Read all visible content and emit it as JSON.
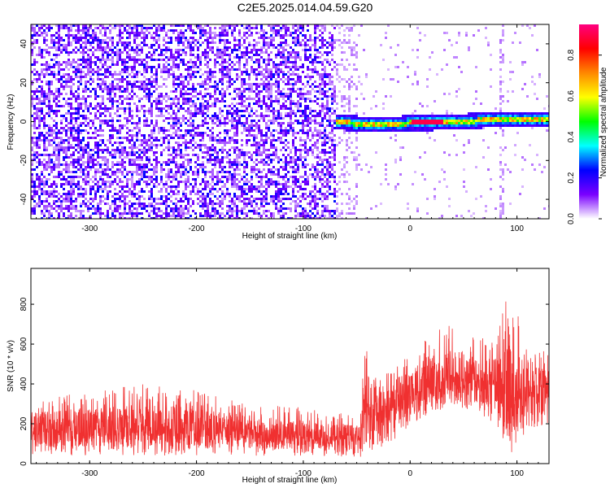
{
  "title": "C2E5.2025.014.04.59.G20",
  "chart_data": [
    {
      "type": "heatmap",
      "xlabel": "Height of straight line (km)",
      "ylabel": "Frequency (Hz)",
      "xlim": [
        -355,
        130
      ],
      "ylim": [
        -50,
        50
      ],
      "x_ticks": [
        "-300",
        "-200",
        "-100",
        "0",
        "100"
      ],
      "x_tick_values": [
        -300,
        -200,
        -100,
        0,
        100
      ],
      "y_ticks": [
        "-40",
        "-20",
        "0",
        "20",
        "40"
      ],
      "y_tick_values": [
        -40,
        -20,
        0,
        20,
        40
      ],
      "colorbar": {
        "label": "Normalized spectral amplitude",
        "range": [
          0,
          0.95
        ],
        "ticks": [
          "0.0",
          "0.2",
          "0.4",
          "0.6",
          "0.8"
        ],
        "tick_values": [
          0.0,
          0.2,
          0.4,
          0.6,
          0.8
        ],
        "colormap": [
          "#ffffff",
          "#7a00ff",
          "#0000ff",
          "#00ffff",
          "#00ff00",
          "#ffff00",
          "#ff8800",
          "#ff0000",
          "#ff0080"
        ]
      },
      "features": {
        "noise_region_x": [
          -355,
          -70
        ],
        "noise_level": [
          0.0,
          0.25
        ],
        "signal_start_x": -70,
        "signal_track": [
          {
            "x": -70,
            "f": 0.5
          },
          {
            "x": -40,
            "f": -1
          },
          {
            "x": -20,
            "f": -1
          },
          {
            "x": 0,
            "f": 0
          },
          {
            "x": 20,
            "f": 0
          },
          {
            "x": 40,
            "f": 0.5
          },
          {
            "x": 60,
            "f": 1
          },
          {
            "x": 85,
            "f": 2
          },
          {
            "x": 130,
            "f": 2
          }
        ],
        "signal_peak_x": [
          0,
          30
        ],
        "signal_peak_amplitude": 0.9
      }
    },
    {
      "type": "line",
      "xlabel": "Height of straight line (km)",
      "ylabel": "SNR (10 * v/v)",
      "xlim": [
        -355,
        130
      ],
      "ylim": [
        0,
        980
      ],
      "x_ticks": [
        "-300",
        "-200",
        "-100",
        "0",
        "100"
      ],
      "x_tick_values": [
        -300,
        -200,
        -100,
        0,
        100
      ],
      "y_ticks": [
        "0",
        "200",
        "400",
        "600",
        "800"
      ],
      "y_tick_values": [
        0,
        200,
        400,
        600,
        800
      ],
      "color": "#f03030",
      "envelope": [
        {
          "x": -355,
          "low": 40,
          "mean": 170,
          "high": 320
        },
        {
          "x": -300,
          "low": 40,
          "mean": 180,
          "high": 360
        },
        {
          "x": -250,
          "low": 40,
          "mean": 190,
          "high": 400
        },
        {
          "x": -200,
          "low": 40,
          "mean": 180,
          "high": 380
        },
        {
          "x": -150,
          "low": 40,
          "mean": 160,
          "high": 320
        },
        {
          "x": -100,
          "low": 40,
          "mean": 140,
          "high": 280
        },
        {
          "x": -47,
          "low": 30,
          "mean": 130,
          "high": 240
        },
        {
          "x": -44,
          "low": 20,
          "mean": 250,
          "high": 640
        },
        {
          "x": -30,
          "low": 60,
          "mean": 270,
          "high": 420
        },
        {
          "x": 0,
          "low": 180,
          "mean": 360,
          "high": 560
        },
        {
          "x": 20,
          "low": 260,
          "mean": 430,
          "high": 680
        },
        {
          "x": 40,
          "low": 280,
          "mean": 450,
          "high": 700
        },
        {
          "x": 60,
          "low": 260,
          "mean": 420,
          "high": 640
        },
        {
          "x": 80,
          "low": 200,
          "mean": 400,
          "high": 620
        },
        {
          "x": 95,
          "low": 40,
          "mean": 330,
          "high": 960
        },
        {
          "x": 110,
          "low": 160,
          "mean": 360,
          "high": 560
        },
        {
          "x": 130,
          "low": 200,
          "mean": 380,
          "high": 580
        }
      ]
    }
  ]
}
